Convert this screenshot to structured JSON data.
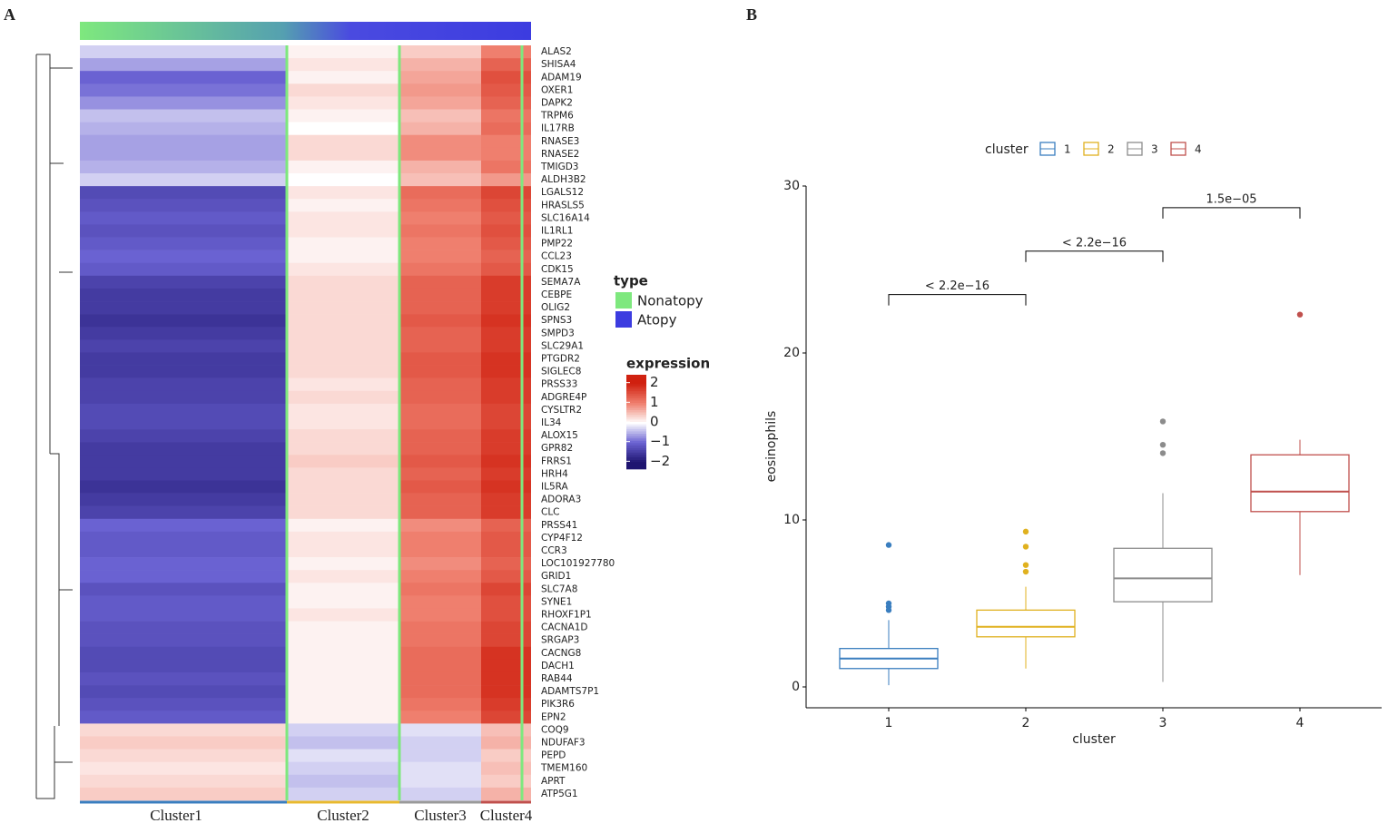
{
  "chart_data": [
    {
      "type": "heatmap",
      "panel_label": "A",
      "rows": [
        "ALAS2",
        "SHISA4",
        "ADAM19",
        "OXER1",
        "DAPK2",
        "TRPM6",
        "IL17RB",
        "RNASE3",
        "RNASE2",
        "TMIGD3",
        "ALDH3B2",
        "LGALS12",
        "HRASLS5",
        "SLC16A14",
        "IL1RL1",
        "PMP22",
        "CCL23",
        "CDK15",
        "SEMA7A",
        "CEBPE",
        "OLIG2",
        "SPNS3",
        "SMPD3",
        "SLC29A1",
        "PTGDR2",
        "SIGLEC8",
        "PRSS33",
        "ADGRE4P",
        "CYSLTR2",
        "IL34",
        "ALOX15",
        "GPR82",
        "FRRS1",
        "HRH4",
        "IL5RA",
        "ADORA3",
        "CLC",
        "PRSS41",
        "CYP4F12",
        "CCR3",
        "LOC101927780",
        "GRID1",
        "SLC7A8",
        "SYNE1",
        "RHOXF1P1",
        "CACNA1D",
        "SRGAP3",
        "CACNG8",
        "DACH1",
        "RAB44",
        "ADAMTS7P1",
        "PIK3R6",
        "EPN2",
        "COQ9",
        "NDUFAF3",
        "PEPD",
        "TMEM160",
        "APRT",
        "ATP5G1"
      ],
      "columns": [
        "Cluster1",
        "Cluster2",
        "Cluster3",
        "Cluster4"
      ],
      "column_colors": [
        "#3a7ebf",
        "#e8b92f",
        "#9a9a9a",
        "#c0504d"
      ],
      "values": [
        [
          -0.3,
          0.1,
          0.4,
          1.0
        ],
        [
          -0.6,
          0.2,
          0.6,
          1.3
        ],
        [
          -1.0,
          0.1,
          0.7,
          1.5
        ],
        [
          -0.9,
          0.3,
          0.8,
          1.4
        ],
        [
          -0.7,
          0.2,
          0.7,
          1.3
        ],
        [
          -0.4,
          0.1,
          0.5,
          1.1
        ],
        [
          -0.5,
          0.0,
          0.6,
          1.2
        ],
        [
          -0.6,
          0.3,
          0.9,
          1.0
        ],
        [
          -0.6,
          0.3,
          0.9,
          1.0
        ],
        [
          -0.5,
          0.1,
          0.6,
          1.1
        ],
        [
          -0.3,
          0.0,
          0.5,
          0.8
        ],
        [
          -1.3,
          0.2,
          1.2,
          1.6
        ],
        [
          -1.2,
          0.1,
          1.1,
          1.5
        ],
        [
          -1.1,
          0.2,
          1.0,
          1.4
        ],
        [
          -1.2,
          0.2,
          1.1,
          1.5
        ],
        [
          -1.1,
          0.1,
          1.0,
          1.4
        ],
        [
          -1.0,
          0.1,
          1.0,
          1.3
        ],
        [
          -1.1,
          0.2,
          1.1,
          1.4
        ],
        [
          -1.4,
          0.3,
          1.3,
          1.7
        ],
        [
          -1.5,
          0.3,
          1.3,
          1.7
        ],
        [
          -1.5,
          0.3,
          1.3,
          1.7
        ],
        [
          -1.6,
          0.3,
          1.4,
          1.8
        ],
        [
          -1.5,
          0.3,
          1.3,
          1.7
        ],
        [
          -1.4,
          0.3,
          1.3,
          1.7
        ],
        [
          -1.5,
          0.3,
          1.4,
          1.8
        ],
        [
          -1.5,
          0.3,
          1.4,
          1.8
        ],
        [
          -1.4,
          0.2,
          1.3,
          1.7
        ],
        [
          -1.4,
          0.3,
          1.3,
          1.7
        ],
        [
          -1.3,
          0.2,
          1.2,
          1.6
        ],
        [
          -1.3,
          0.2,
          1.2,
          1.6
        ],
        [
          -1.4,
          0.3,
          1.3,
          1.7
        ],
        [
          -1.5,
          0.3,
          1.3,
          1.7
        ],
        [
          -1.5,
          0.4,
          1.4,
          1.8
        ],
        [
          -1.5,
          0.3,
          1.3,
          1.7
        ],
        [
          -1.6,
          0.3,
          1.4,
          1.8
        ],
        [
          -1.5,
          0.3,
          1.3,
          1.7
        ],
        [
          -1.4,
          0.3,
          1.3,
          1.7
        ],
        [
          -1.0,
          0.1,
          0.9,
          1.3
        ],
        [
          -1.1,
          0.2,
          1.0,
          1.4
        ],
        [
          -1.1,
          0.2,
          1.0,
          1.4
        ],
        [
          -1.0,
          0.1,
          0.9,
          1.3
        ],
        [
          -1.0,
          0.2,
          1.0,
          1.4
        ],
        [
          -1.2,
          0.1,
          1.1,
          1.6
        ],
        [
          -1.1,
          0.1,
          1.0,
          1.5
        ],
        [
          -1.1,
          0.2,
          1.0,
          1.5
        ],
        [
          -1.2,
          0.1,
          1.1,
          1.6
        ],
        [
          -1.2,
          0.1,
          1.1,
          1.6
        ],
        [
          -1.3,
          0.1,
          1.2,
          1.8
        ],
        [
          -1.3,
          0.1,
          1.2,
          1.8
        ],
        [
          -1.2,
          0.1,
          1.2,
          1.8
        ],
        [
          -1.3,
          0.1,
          1.2,
          1.8
        ],
        [
          -1.2,
          0.1,
          1.1,
          1.7
        ],
        [
          -1.1,
          0.1,
          1.0,
          1.6
        ],
        [
          0.3,
          -0.3,
          -0.2,
          0.5
        ],
        [
          0.4,
          -0.4,
          -0.3,
          0.6
        ],
        [
          0.3,
          -0.2,
          -0.3,
          0.4
        ],
        [
          0.2,
          -0.3,
          -0.2,
          0.5
        ],
        [
          0.3,
          -0.4,
          -0.2,
          0.4
        ],
        [
          0.4,
          -0.3,
          -0.3,
          0.6
        ]
      ],
      "type_legend": {
        "title": "type",
        "names": [
          "Nonatopy",
          "Atopy"
        ],
        "colors": [
          "#7ee87e",
          "#3c3ce0"
        ]
      },
      "colorbar": {
        "title": "expression",
        "clim": [
          -2.4,
          2.4
        ],
        "ticks": [
          2,
          1,
          0,
          {
            "value": -1,
            "label": "−1"
          },
          {
            "value": -2,
            "label": "−2"
          }
        ],
        "colors": [
          "#1e1470",
          "#6a62d2",
          "#ffffff",
          "#ef7f6e",
          "#d0200f"
        ]
      }
    },
    {
      "type": "box",
      "panel_label": "B",
      "categories": [
        "1",
        "2",
        "3",
        "4"
      ],
      "colors": [
        "#3a7ebf",
        "#e0b11f",
        "#8c8c8c",
        "#c0504d"
      ],
      "boxes": [
        {
          "low": 0.1,
          "q1": 1.1,
          "median": 1.7,
          "q3": 2.3,
          "high": 4.0,
          "outliers": [
            4.6,
            4.8,
            5.0,
            8.5
          ]
        },
        {
          "low": 1.1,
          "q1": 3.0,
          "median": 3.6,
          "q3": 4.6,
          "high": 6.0,
          "outliers": [
            6.9,
            7.3,
            8.4,
            9.3
          ]
        },
        {
          "low": 0.3,
          "q1": 5.1,
          "median": 6.5,
          "q3": 8.3,
          "high": 11.6,
          "outliers": [
            14.0,
            14.5,
            15.9
          ]
        },
        {
          "low": 6.7,
          "q1": 10.5,
          "median": 11.7,
          "q3": 13.9,
          "high": 14.8,
          "outliers": [
            22.3
          ]
        }
      ],
      "ylim": [
        -1.25,
        30
      ],
      "yticks": [
        0,
        10,
        20,
        30
      ],
      "xlabel": "cluster",
      "ylabel": "eosinophils",
      "legend_title": "cluster",
      "comparisons": [
        {
          "label": "< 2.2e−16",
          "y": 23.5
        },
        {
          "label": "< 2.2e−16",
          "y": 26.1
        },
        {
          "label": "1.5e−05",
          "y": 28.7
        }
      ]
    }
  ]
}
